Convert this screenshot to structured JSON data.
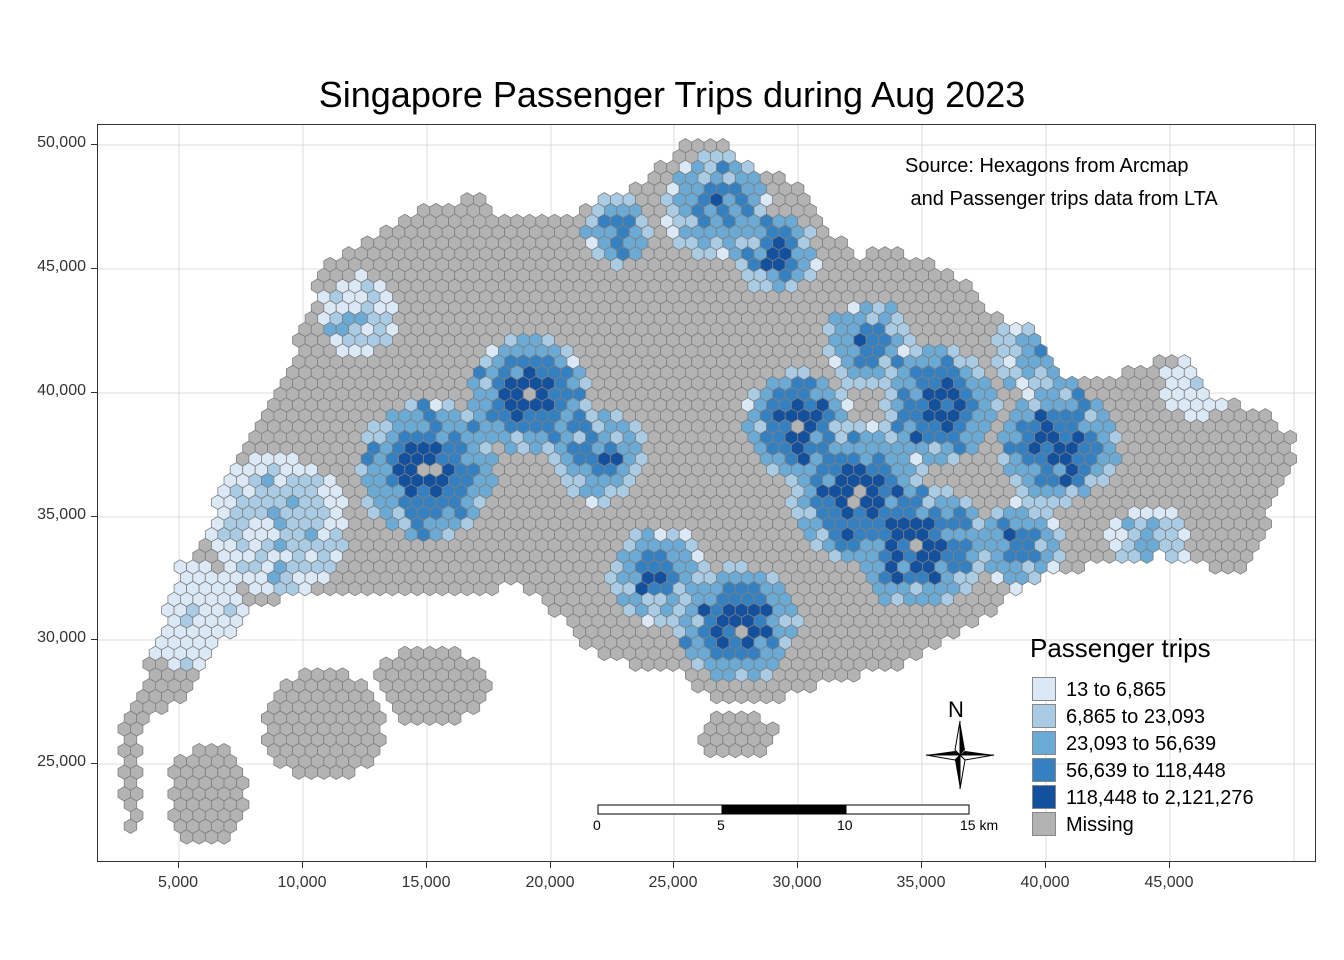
{
  "title": "Singapore Passenger Trips during Aug 2023",
  "source_text": "Source: Hexagons from Arcmap\n and Passenger trips data from LTA",
  "axes": {
    "x_ticks": [
      "5,000",
      "10,000",
      "15,000",
      "20,000",
      "25,000",
      "30,000",
      "35,000",
      "40,000",
      "45,000"
    ],
    "y_ticks": [
      "50,000",
      "45,000",
      "40,000",
      "35,000",
      "30,000",
      "25,000"
    ]
  },
  "legend": {
    "title": "Passenger trips",
    "items": [
      {
        "label": "13 to 6,865",
        "color": "#dbe8f5"
      },
      {
        "label": "6,865 to 23,093",
        "color": "#a9cce4"
      },
      {
        "label": "23,093 to 56,639",
        "color": "#6aaad5"
      },
      {
        "label": "56,639 to 118,448",
        "color": "#3580c0"
      },
      {
        "label": "118,448 to 2,121,276",
        "color": "#13509e"
      },
      {
        "label": "Missing",
        "color": "#b3b3b3"
      }
    ]
  },
  "north_arrow": {
    "label": "N",
    "icon": "compass-star-icon"
  },
  "scale_bar": {
    "labels": [
      "0",
      "5",
      "10",
      "15 km"
    ]
  },
  "colors": {
    "missing": "#b3b3b3",
    "hex_stroke": "#7f7f7f",
    "grid": "#dcdcdc"
  }
}
